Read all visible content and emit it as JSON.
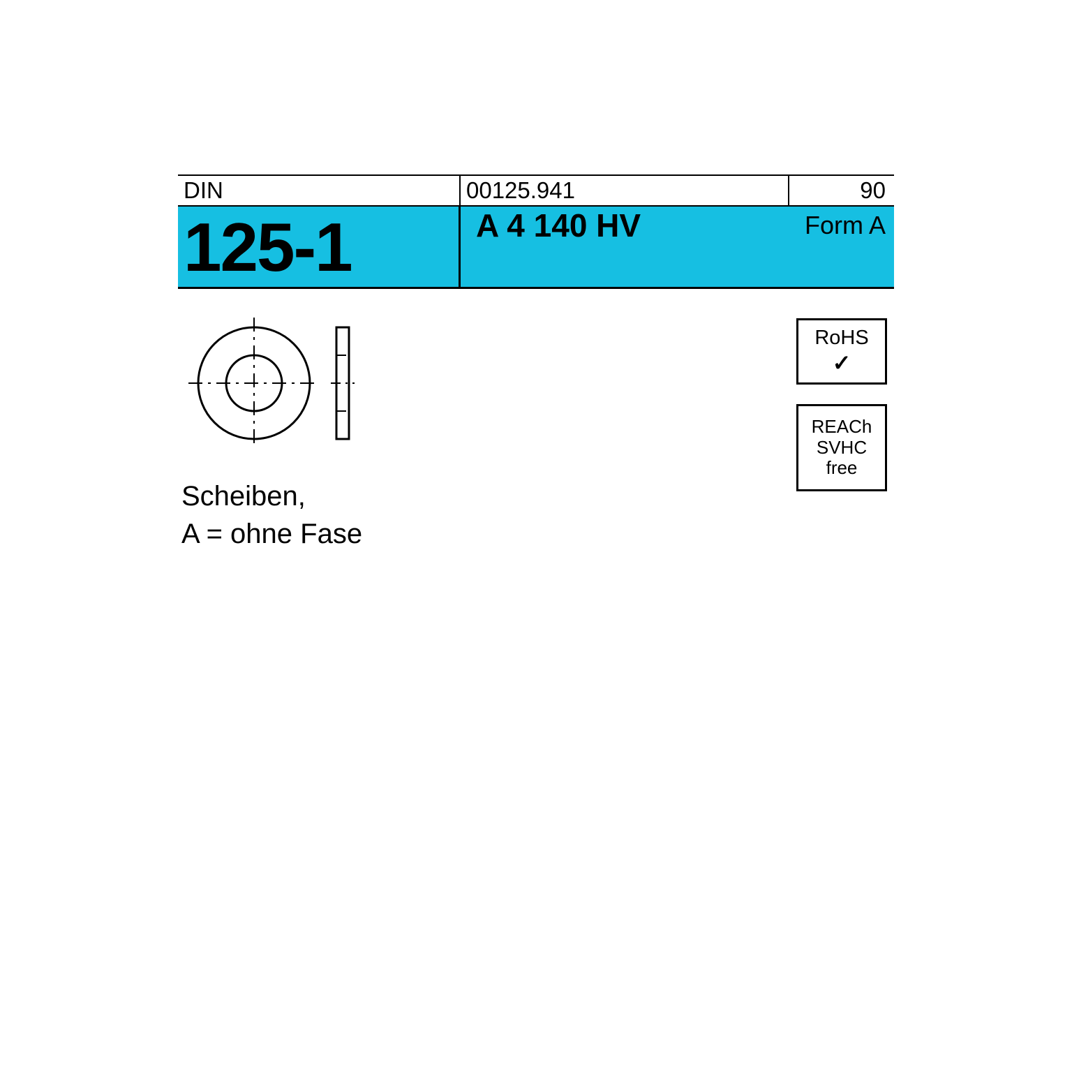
{
  "header": {
    "left_label": "DIN",
    "mid_label": "00125.941",
    "right_label": "90"
  },
  "main": {
    "din_number": "125-1",
    "material": "A 4 140 HV",
    "form": "Form A"
  },
  "description": {
    "line1": "Scheiben,",
    "line2": "A = ohne Fase"
  },
  "badges": {
    "rohs_label": "RoHS",
    "reach_line1": "REACh",
    "reach_line2": "SVHC",
    "reach_line3": "free"
  },
  "colors": {
    "accent": "#16bfe2",
    "stroke": "#000000",
    "background": "#ffffff"
  },
  "drawing": {
    "type": "washer-technical-drawing",
    "front_view": {
      "outer_diameter": 160,
      "inner_diameter": 80,
      "crosshair_extend": 14,
      "dash_pattern": "20 8 4 8"
    },
    "side_view": {
      "width": 18,
      "height": 160,
      "gap": 24,
      "dash_pattern": "14 7 3 7"
    },
    "stroke_width": 3
  }
}
